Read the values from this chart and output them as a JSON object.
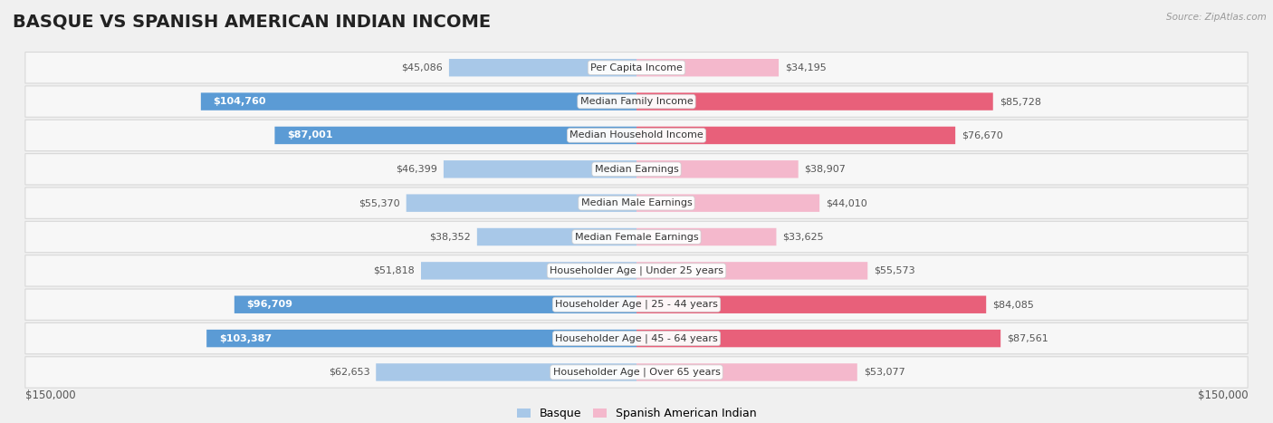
{
  "title": "BASQUE VS SPANISH AMERICAN INDIAN INCOME",
  "source": "Source: ZipAtlas.com",
  "categories": [
    "Per Capita Income",
    "Median Family Income",
    "Median Household Income",
    "Median Earnings",
    "Median Male Earnings",
    "Median Female Earnings",
    "Householder Age | Under 25 years",
    "Householder Age | 25 - 44 years",
    "Householder Age | 45 - 64 years",
    "Householder Age | Over 65 years"
  ],
  "basque_values": [
    45086,
    104760,
    87001,
    46399,
    55370,
    38352,
    51818,
    96709,
    103387,
    62653
  ],
  "spanish_ai_values": [
    34195,
    85728,
    76670,
    38907,
    44010,
    33625,
    55573,
    84085,
    87561,
    53077
  ],
  "basque_labels": [
    "$45,086",
    "$104,760",
    "$87,001",
    "$46,399",
    "$55,370",
    "$38,352",
    "$51,818",
    "$96,709",
    "$103,387",
    "$62,653"
  ],
  "spanish_ai_labels": [
    "$34,195",
    "$85,728",
    "$76,670",
    "$38,907",
    "$44,010",
    "$33,625",
    "$55,573",
    "$84,085",
    "$87,561",
    "$53,077"
  ],
  "basque_light": "#a8c8e8",
  "basque_dark": "#5b9bd5",
  "spanish_light": "#f4b8cc",
  "spanish_dark": "#e8607a",
  "max_value": 150000,
  "bg_color": "#f0f0f0",
  "row_bg": "#f7f7f7",
  "row_border": "#d8d8d8",
  "xlabel_left": "$150,000",
  "xlabel_right": "$150,000",
  "legend_basque": "Basque",
  "legend_spanish": "Spanish American Indian",
  "title_fontsize": 14,
  "label_fontsize": 8,
  "category_fontsize": 8,
  "basque_dark_threshold": 80000,
  "spanish_dark_threshold": 75000
}
